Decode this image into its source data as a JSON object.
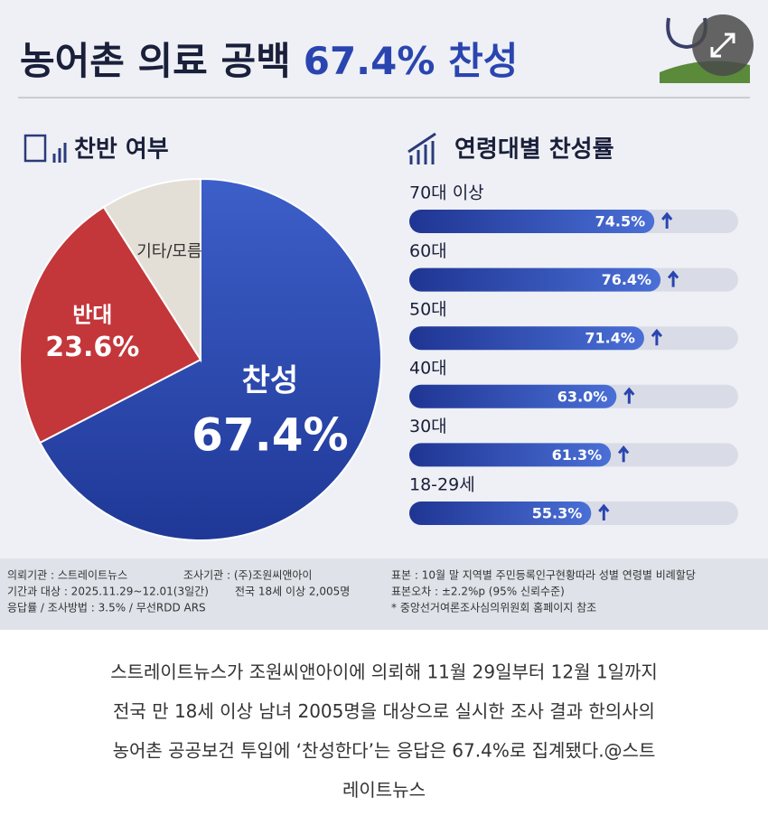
{
  "title": {
    "main": "농어촌 의료 공백",
    "highlight": "67.4% 찬성"
  },
  "chart_data": [
    {
      "type": "pie",
      "title": "찬반 여부",
      "categories": [
        "찬성",
        "반대",
        "기타/모름"
      ],
      "values": [
        67.4,
        23.6,
        9.0
      ],
      "value_labels": [
        "67.4%",
        "23.6%",
        null
      ],
      "colors": [
        "#2d4db3",
        "#c3363a",
        "#e4dfd6"
      ],
      "label_colors": [
        "#ffffff",
        "#ffffff",
        "#333333"
      ]
    },
    {
      "type": "bar",
      "title": "연령대별 찬성률",
      "orientation": "horizontal",
      "categories": [
        "70대 이상",
        "60대",
        "50대",
        "40대",
        "30대",
        "18-29세"
      ],
      "values": [
        74.5,
        76.4,
        71.4,
        63.0,
        61.3,
        55.3
      ],
      "value_labels": [
        "74.5%",
        "76.4%",
        "71.4%",
        "63.0%",
        "61.3%",
        "55.3%"
      ],
      "color": "#2a45b0",
      "xlim": [
        0,
        100
      ]
    }
  ],
  "footer": {
    "col1": [
      "의뢰기관 : 스트레이트뉴스",
      "기간과 대상 : 2025.11.29~12.01(3일간)",
      "응답률 / 조사방법 : 3.5% / 무선RDD ARS"
    ],
    "col2": [
      "조사기관 : (주)조원씨앤아이",
      "전국 18세 이상  2,005명"
    ],
    "col3": [
      "표본 : 10월 말 지역별 주민등록인구현황따라 성별 연령별 비례할당",
      "표본오차 : ±2.2%p (95% 신뢰수준)",
      "* 중앙선거여론조사심의위원회 홈페이지 참조"
    ]
  },
  "caption": [
    "스트레이트뉴스가 조원씨앤아이에 의뢰해 11월 29일부터 12월 1일까지",
    "전국 만 18세 이상 남녀 2005명을 대상으로 실시한 조사 결과 한의사의",
    "농어촌 공공보건 투입에 ‘찬성한다’는 응답은 67.4%로 집계됐다.@스트",
    "레이트뉴스"
  ]
}
